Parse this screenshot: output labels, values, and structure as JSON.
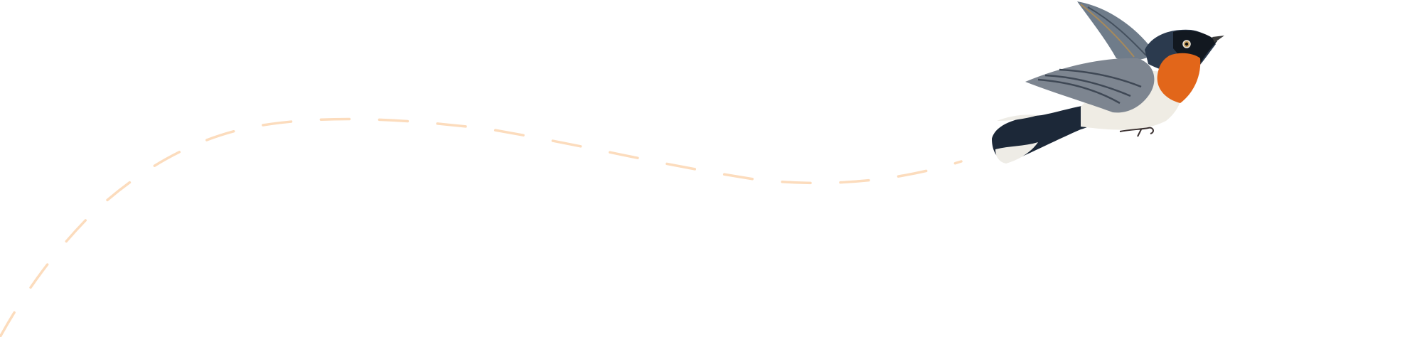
{
  "illustration": {
    "subject": "bird-in-flight",
    "path_style": "dashed",
    "colors": {
      "background": "#ffffff",
      "flight_path": "#fcdcbd",
      "bird_throat": "#e2661a",
      "bird_head": "#2b3a4e",
      "bird_belly": "#efece4",
      "bird_wing": "#7d8590",
      "bird_tail": "#1c2838"
    }
  }
}
